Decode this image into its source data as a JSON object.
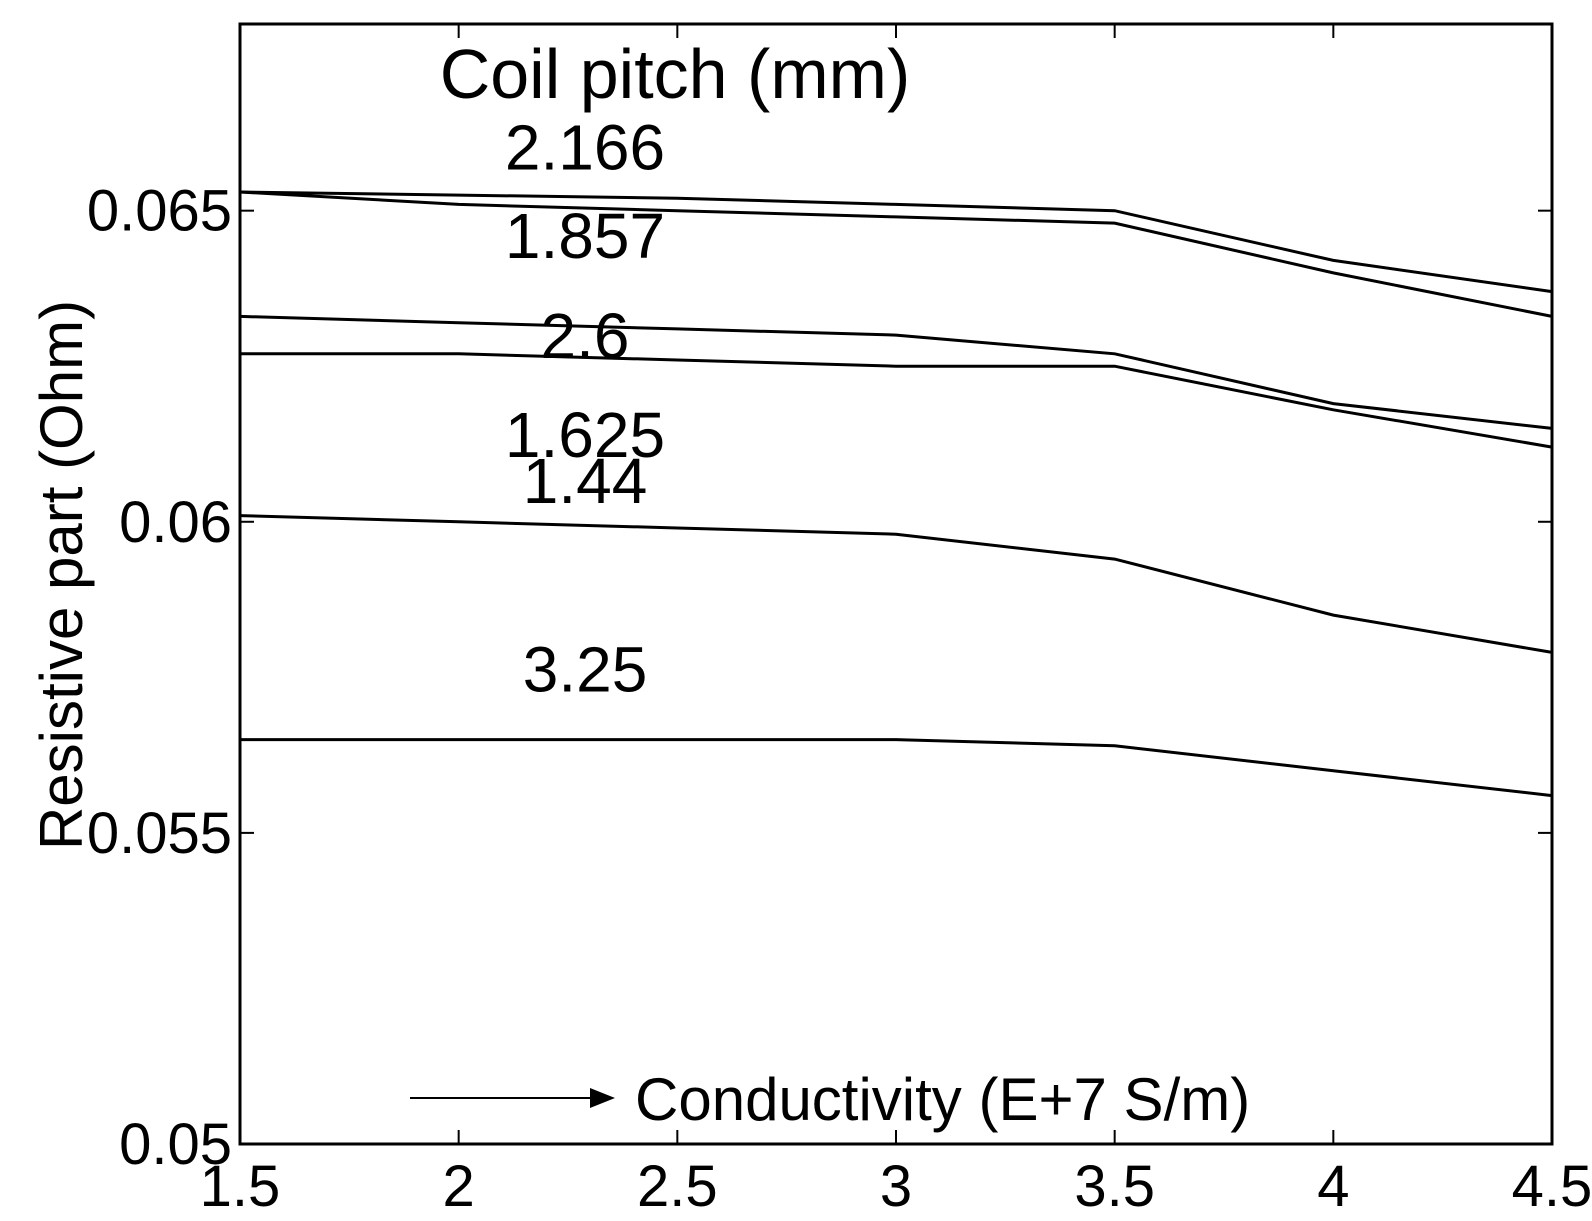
{
  "chart_data": {
    "type": "line",
    "title": "Coil pitch (mm)",
    "xlabel": "Conductivity  (E+7 S/m)",
    "ylabel": "Resistive part  (Ohm)",
    "xlim": [
      1.5,
      4.5
    ],
    "ylim": [
      0.05,
      0.068
    ],
    "xticks": [
      1.5,
      2,
      2.5,
      3,
      3.5,
      4,
      4.5
    ],
    "xtick_labels": [
      "1.5",
      "2",
      "2.5",
      "3",
      "3.5",
      "4",
      "4.5"
    ],
    "yticks": [
      0.05,
      0.055,
      0.06,
      0.065
    ],
    "ytick_labels": [
      "0.05",
      "0.055",
      "0.06",
      "0.065"
    ],
    "grid": false,
    "x": [
      1.5,
      2,
      2.5,
      3,
      3.5,
      4,
      4.5
    ],
    "series": [
      {
        "name": "2.166",
        "values": [
          0.0653,
          0.06525,
          0.0652,
          0.0651,
          0.065,
          0.0642,
          0.0637
        ]
      },
      {
        "name": "1.857",
        "values": [
          0.0653,
          0.0651,
          0.065,
          0.0649,
          0.0648,
          0.064,
          0.0633
        ]
      },
      {
        "name": "2.6",
        "values": [
          0.0633,
          0.0632,
          0.0631,
          0.063,
          0.0627,
          0.0619,
          0.0615
        ]
      },
      {
        "name": "1.625",
        "values": [
          0.0627,
          0.0627,
          0.0626,
          0.0625,
          0.0625,
          0.0618,
          0.0612
        ]
      },
      {
        "name": "1.44",
        "values": [
          0.0601,
          0.06,
          0.0599,
          0.0598,
          0.0594,
          0.0585,
          0.0579
        ]
      },
      {
        "name": "3.25",
        "values": [
          0.0565,
          0.0565,
          0.0565,
          0.0565,
          0.0564,
          0.056,
          0.0556
        ]
      }
    ],
    "label_positions_x": [
      2.75,
      2.75,
      2.75,
      2.75,
      2.75,
      2.75
    ]
  }
}
